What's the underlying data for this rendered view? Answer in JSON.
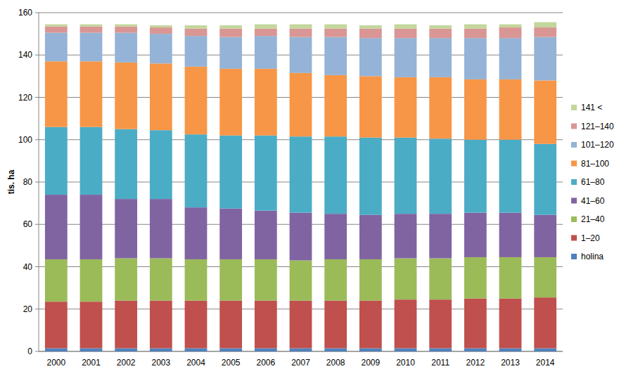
{
  "chart_data": {
    "type": "bar",
    "stacked": true,
    "y_label": "tis. ha",
    "categories": [
      "2000",
      "2001",
      "2002",
      "2003",
      "2004",
      "2005",
      "2006",
      "2007",
      "2008",
      "2009",
      "2010",
      "2011",
      "2012",
      "2013",
      "2014"
    ],
    "series": [
      {
        "name": "holina",
        "color": "#4f81bd",
        "values": [
          1.5,
          1.5,
          1.5,
          1.5,
          1.5,
          1.5,
          1.5,
          1.5,
          1.5,
          1.5,
          1.5,
          1.5,
          1.5,
          1.5,
          1.5
        ]
      },
      {
        "name": "1–20",
        "color": "#c0504d",
        "values": [
          22,
          22,
          22.5,
          22.5,
          22.5,
          22.5,
          22.5,
          22.5,
          22.5,
          22.5,
          23,
          23,
          23.5,
          23.5,
          24
        ]
      },
      {
        "name": "21–40",
        "color": "#9bbb59",
        "values": [
          20,
          20,
          20,
          20,
          19.5,
          19.5,
          19.5,
          19,
          19.5,
          19.5,
          19.5,
          19.5,
          19.5,
          19.5,
          19
        ]
      },
      {
        "name": "41–60",
        "color": "#8064a2",
        "values": [
          30.5,
          30.5,
          28,
          28,
          24.5,
          24,
          23,
          22.5,
          21.5,
          21,
          21,
          21,
          21,
          21,
          20
        ]
      },
      {
        "name": "61–80",
        "color": "#4bacc6",
        "values": [
          32,
          32,
          33,
          32.5,
          34.5,
          34.5,
          35.5,
          36,
          36.5,
          36.5,
          36,
          35.5,
          34.5,
          34.5,
          33.5
        ]
      },
      {
        "name": "81–100",
        "color": "#f79646",
        "values": [
          31,
          31,
          31.5,
          31.5,
          32,
          31.5,
          31.5,
          30,
          29,
          29,
          28.5,
          29,
          28.5,
          28.5,
          30
        ]
      },
      {
        "name": "101–120",
        "color": "#95b3d7",
        "values": [
          13.5,
          13.5,
          14,
          14,
          14.5,
          15,
          15.5,
          17,
          18,
          18,
          18.5,
          18.5,
          19.5,
          19.5,
          20.5
        ]
      },
      {
        "name": "121–140",
        "color": "#d99694",
        "values": [
          3,
          3,
          3,
          3,
          3.5,
          4,
          3.5,
          4,
          4,
          4.5,
          4.5,
          4.5,
          4.5,
          5,
          4.5
        ]
      },
      {
        "name": "141 <",
        "color": "#c3d69b",
        "values": [
          1,
          1,
          1,
          1,
          1.5,
          1.5,
          2,
          2,
          2,
          1.5,
          2,
          1.5,
          2,
          1.5,
          2.5
        ]
      }
    ],
    "ylim": [
      0,
      160
    ],
    "yticks": [
      0,
      20,
      40,
      60,
      80,
      100,
      120,
      140,
      160
    ],
    "grid": true,
    "legend": "right"
  }
}
